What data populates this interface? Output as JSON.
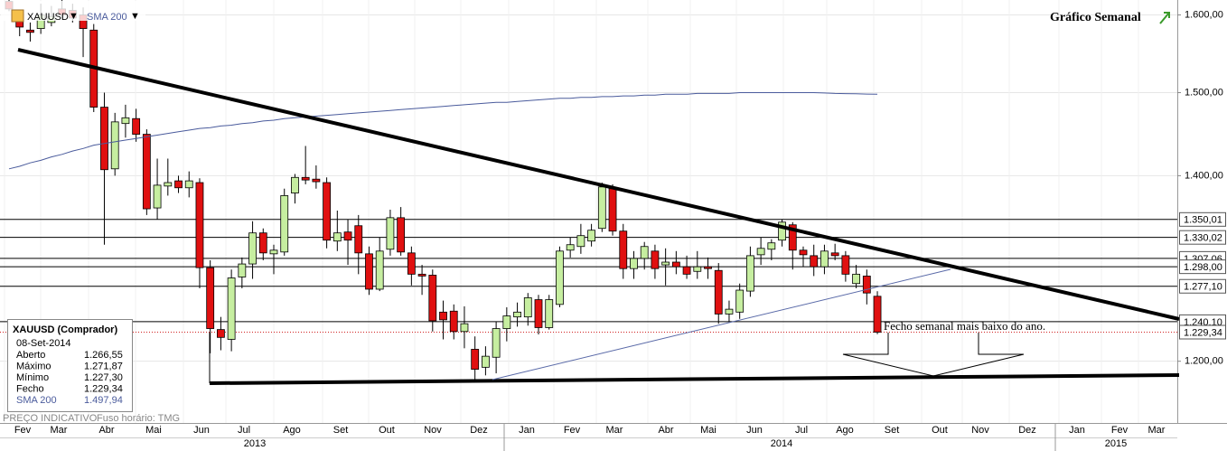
{
  "chart_data": {
    "type": "candlestick",
    "title": "Gráfico Semanal",
    "symbol": "XAUUSD",
    "up_color": "#c6eea0",
    "down_color": "#e01010",
    "open": [
      1618,
      1592,
      1580,
      1582,
      1590,
      1608,
      1606,
      1600,
      1580,
      1482,
      1408,
      1462,
      1468,
      1449,
      1363,
      1388,
      1394,
      1386,
      1392,
      1297,
      1232,
      1222,
      1287,
      1301,
      1335,
      1312,
      1314,
      1380,
      1398,
      1396,
      1392,
      1326,
      1336,
      1343,
      1312,
      1274,
      1317,
      1352,
      1313,
      1290,
      1289,
      1250,
      1251,
      1230,
      1212,
      1194,
      1204,
      1233,
      1245,
      1245,
      1263,
      1234,
      1258,
      1316,
      1320,
      1326,
      1340,
      1385,
      1337,
      1296,
      1307,
      1315,
      1300,
      1303,
      1298,
      1293,
      1298,
      1294,
      1248,
      1250,
      1272,
      1311,
      1317,
      1327,
      1344,
      1316,
      1310,
      1298,
      1313,
      1310,
      1280,
      1288,
      1266.55
    ],
    "high": [
      1630,
      1600,
      1590,
      1615,
      1612,
      1625,
      1615,
      1610,
      1588,
      1500,
      1475,
      1485,
      1480,
      1455,
      1420,
      1420,
      1400,
      1405,
      1397,
      1305,
      1245,
      1295,
      1308,
      1348,
      1340,
      1322,
      1385,
      1402,
      1435,
      1412,
      1398,
      1360,
      1350,
      1355,
      1320,
      1330,
      1361,
      1364,
      1320,
      1300,
      1295,
      1262,
      1258,
      1256,
      1225,
      1215,
      1240,
      1255,
      1260,
      1270,
      1268,
      1268,
      1320,
      1330,
      1345,
      1345,
      1392,
      1390,
      1345,
      1315,
      1325,
      1322,
      1318,
      1315,
      1310,
      1315,
      1308,
      1302,
      1262,
      1280,
      1320,
      1330,
      1328,
      1350,
      1347,
      1320,
      1322,
      1322,
      1323,
      1315,
      1300,
      1295,
      1271.87
    ],
    "low": [
      1605,
      1572,
      1565,
      1575,
      1585,
      1595,
      1590,
      1545,
      1476,
      1322,
      1400,
      1445,
      1440,
      1355,
      1350,
      1377,
      1380,
      1375,
      1275,
      1208,
      1211,
      1210,
      1275,
      1285,
      1305,
      1290,
      1310,
      1368,
      1390,
      1385,
      1318,
      1315,
      1300,
      1290,
      1268,
      1272,
      1310,
      1310,
      1278,
      1268,
      1230,
      1222,
      1222,
      1213,
      1180,
      1186,
      1188,
      1220,
      1235,
      1236,
      1227,
      1232,
      1255,
      1308,
      1312,
      1320,
      1336,
      1332,
      1285,
      1285,
      1295,
      1285,
      1278,
      1290,
      1285,
      1285,
      1285,
      1238,
      1240,
      1243,
      1266,
      1300,
      1305,
      1320,
      1295,
      1298,
      1288,
      1290,
      1305,
      1282,
      1275,
      1258,
      1227.3
    ],
    "close": [
      1608,
      1584,
      1577,
      1600,
      1598,
      1600,
      1596,
      1582,
      1482,
      1407,
      1464,
      1469,
      1449,
      1362,
      1389,
      1392,
      1386,
      1394,
      1297,
      1233,
      1224,
      1286,
      1301,
      1335,
      1313,
      1316,
      1377,
      1398,
      1395,
      1393,
      1327,
      1335,
      1327,
      1313,
      1274,
      1315,
      1352,
      1314,
      1290,
      1288,
      1241,
      1242,
      1230,
      1238,
      1192,
      1205,
      1233,
      1246,
      1250,
      1265,
      1234,
      1263,
      1315,
      1322,
      1332,
      1338,
      1387,
      1337,
      1296,
      1307,
      1320,
      1296,
      1303,
      1298,
      1290,
      1298,
      1296,
      1248,
      1253,
      1273,
      1310,
      1318,
      1324,
      1347,
      1316,
      1311,
      1298,
      1315,
      1310,
      1290,
      1290,
      1270,
      1229.34
    ],
    "sma": {
      "name": "SMA 200",
      "color": "#4a5b9c",
      "values": [
        1408,
        1411,
        1415,
        1418,
        1422,
        1425,
        1429,
        1432,
        1436,
        1438,
        1440,
        1442,
        1444,
        1446,
        1448,
        1450,
        1452,
        1454,
        1456,
        1457,
        1459,
        1460,
        1462,
        1463,
        1465,
        1466,
        1468,
        1469,
        1470,
        1471,
        1472,
        1473,
        1474,
        1475,
        1476,
        1477,
        1478,
        1479,
        1480,
        1481,
        1482,
        1483,
        1484,
        1485,
        1486,
        1487,
        1488,
        1488,
        1489,
        1490,
        1491,
        1492,
        1493,
        1493,
        1494,
        1494,
        1495,
        1495,
        1496,
        1496,
        1497,
        1497,
        1498,
        1498,
        1498,
        1499,
        1499,
        1499,
        1499,
        1500,
        1500,
        1500,
        1500,
        1500,
        1500,
        1500,
        1500,
        1499.5,
        1499,
        1498.8,
        1498.5,
        1498.2,
        1497.94
      ]
    },
    "log_scale": true,
    "ylim": [
      1140,
      1620
    ],
    "yticks": [
      {
        "value": 1600,
        "label": "1.600,00"
      },
      {
        "value": 1500,
        "label": "1.500,00"
      },
      {
        "value": 1400,
        "label": "1.400,00"
      },
      {
        "value": 1200,
        "label": "1.200,00"
      }
    ],
    "levels": [
      {
        "value": 1350.01,
        "label": "1.350,01"
      },
      {
        "value": 1330.02,
        "label": "1.330,02"
      },
      {
        "value": 1307.06,
        "label": "1.307,06"
      },
      {
        "value": 1298.0,
        "label": "1.298,00"
      },
      {
        "value": 1277.1,
        "label": "1.277,10"
      },
      {
        "value": 1240.1,
        "label": "1.240,10"
      }
    ],
    "last_price": {
      "value": 1229.34,
      "label": "1.229,34"
    },
    "months": [
      "Fev",
      "Mar",
      "Abr",
      "Mai",
      "Jun",
      "Jul",
      "Ago",
      "Set",
      "Out",
      "Nov",
      "Dez",
      "Jan",
      "Fev",
      "Mar",
      "Abr",
      "Mai",
      "Jun",
      "Jul",
      "Ago",
      "Set",
      "Out",
      "Nov",
      "Dez",
      "Jan",
      "Fev",
      "Mar"
    ],
    "years": [
      "2013",
      "2014",
      "2015"
    ],
    "annotation": "Fecho semanal mais baixo do ano.",
    "tooltip": {
      "title": "XAUUSD (Comprador)",
      "date": "08-Set-2014",
      "rows": [
        {
          "label": "Aberto",
          "value": "1.266,55"
        },
        {
          "label": "Máximo",
          "value": "1.271,87"
        },
        {
          "label": "Mínimo",
          "value": "1.227,30"
        },
        {
          "label": "Fecho",
          "value": "1.229,34"
        },
        {
          "label": "SMA 200",
          "value": "1.497,94"
        }
      ]
    },
    "footer": [
      "PREÇO INDICATIVO",
      "Fuso horário: TMG"
    ]
  }
}
